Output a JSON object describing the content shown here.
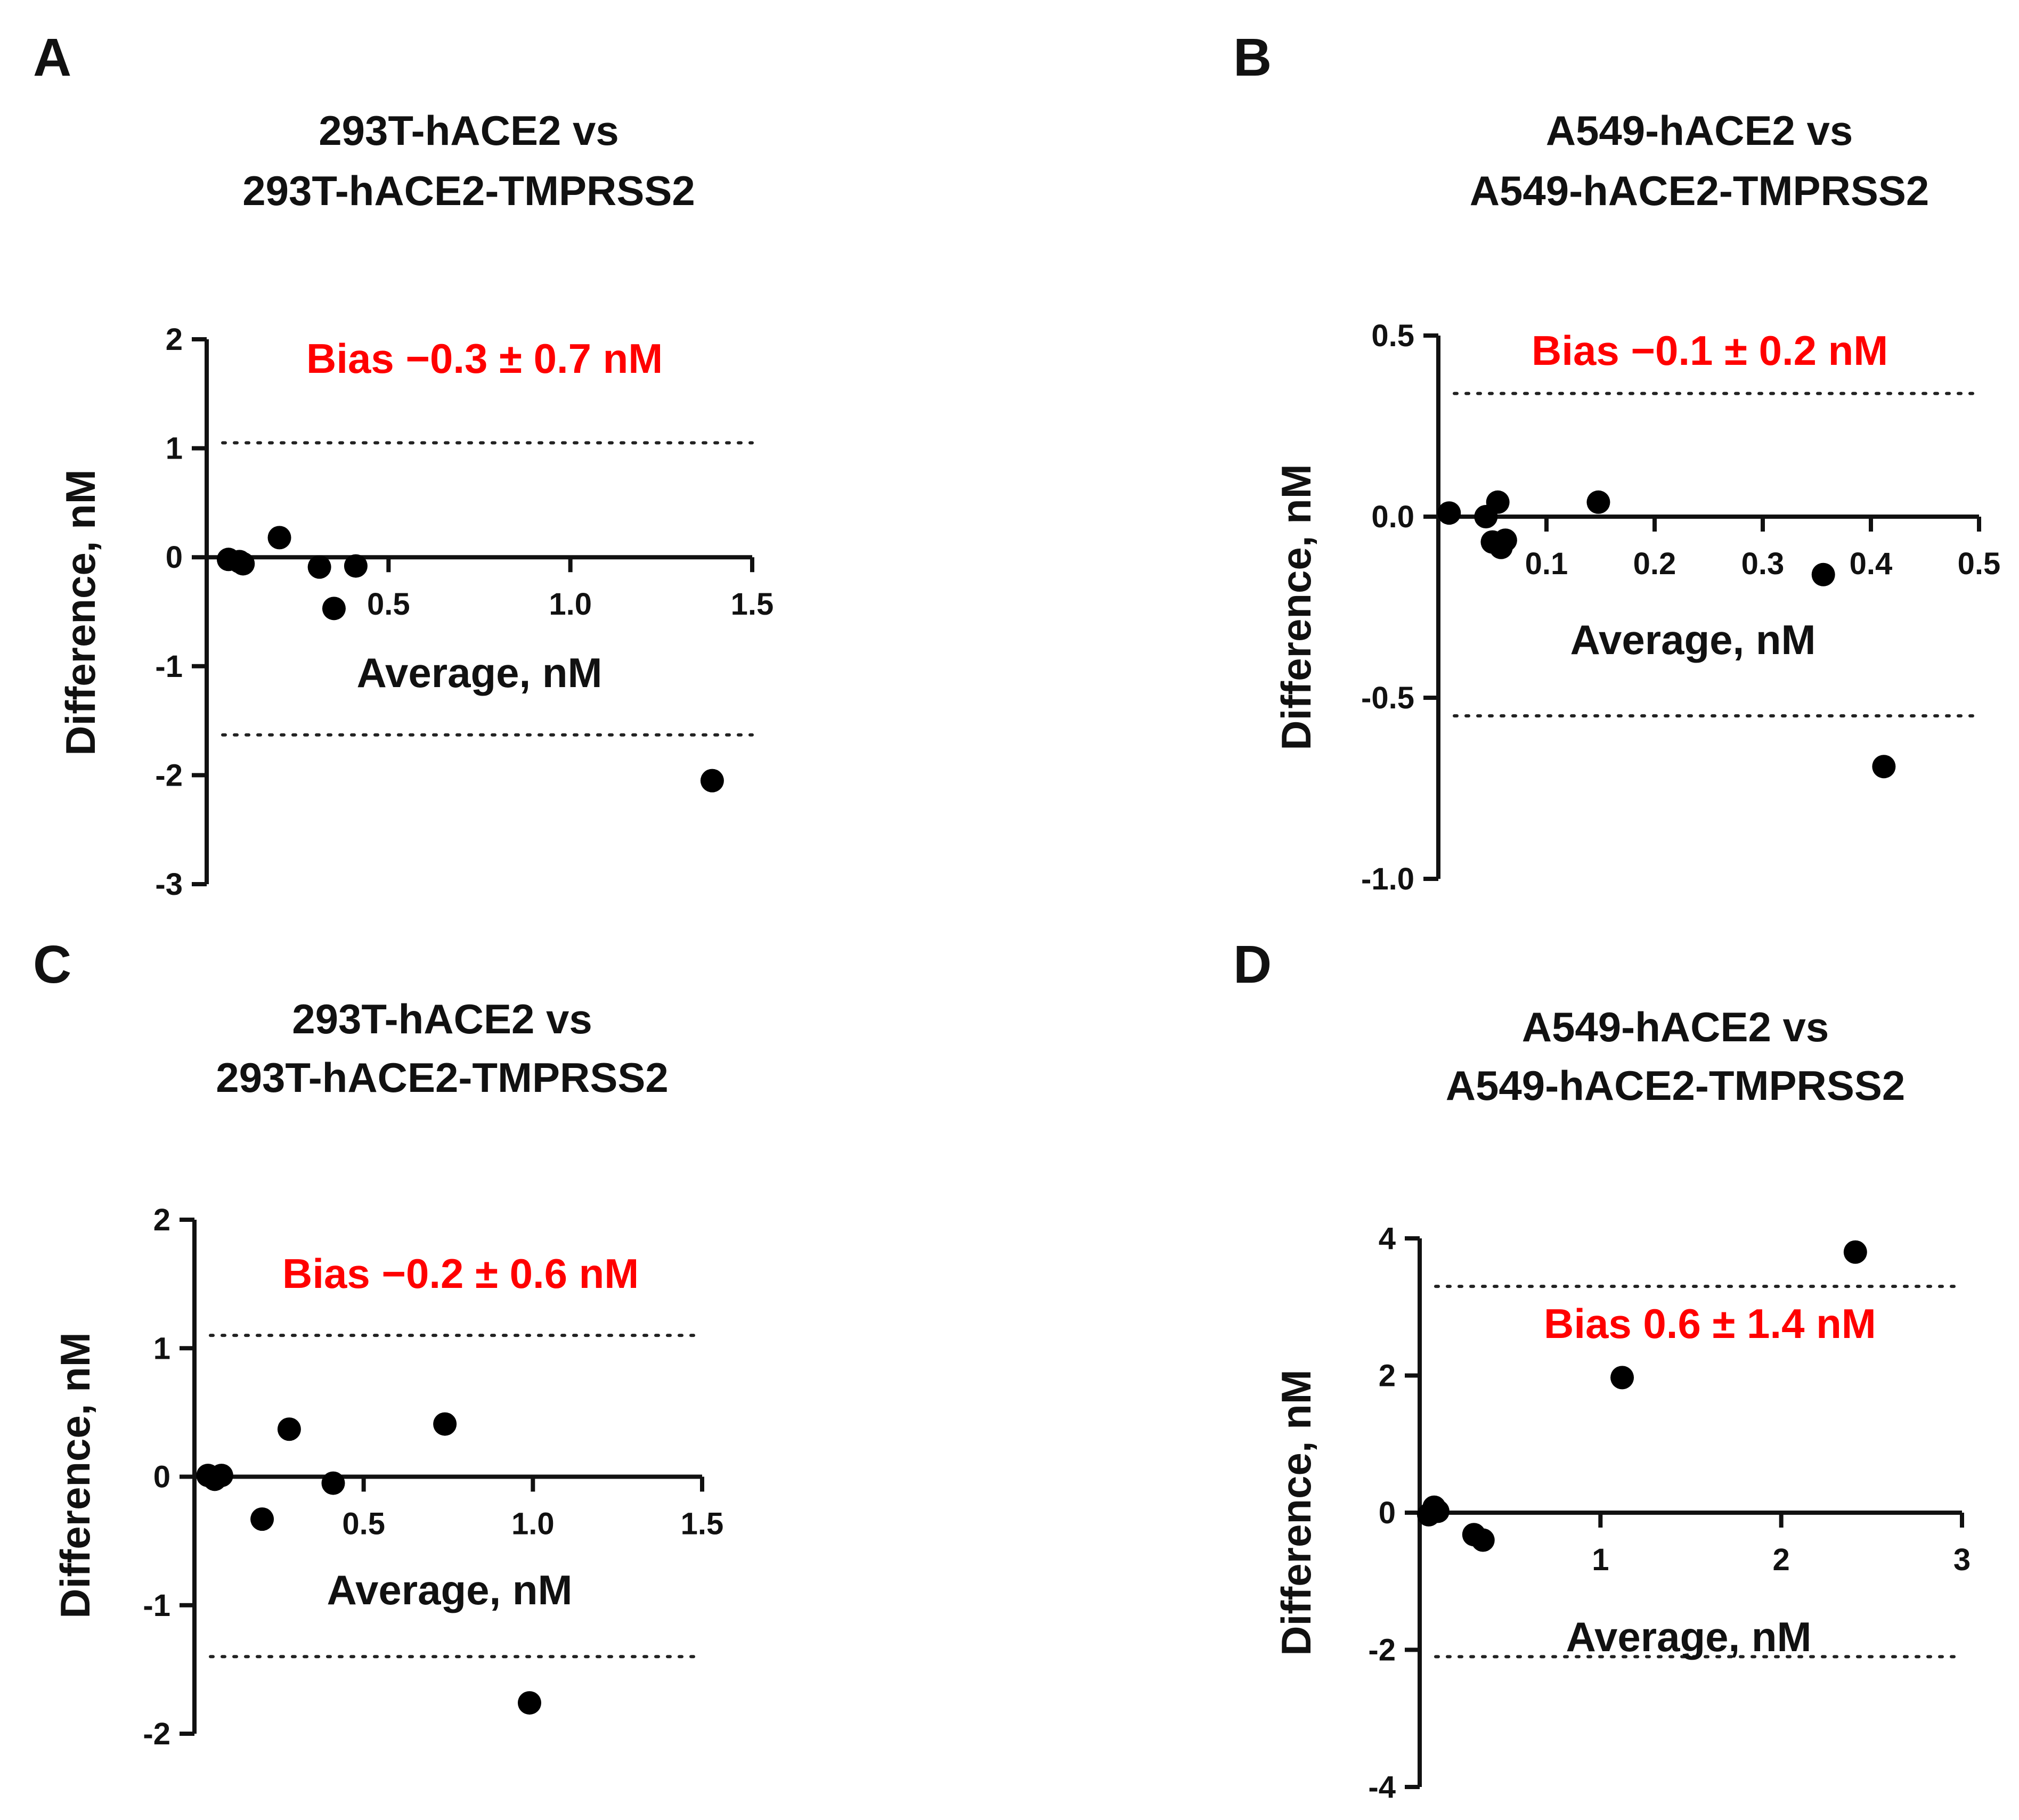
{
  "figure": {
    "panels": [
      "A",
      "B",
      "C",
      "D"
    ]
  },
  "chart_data": [
    {
      "panel": "A",
      "type": "scatter",
      "title_line1": "293T-hACE2 vs",
      "title_line2": "293T-hACE2-TMPRSS2",
      "xlabel": "Average, nM",
      "ylabel": "Difference, nM",
      "xlim": [
        0,
        1.5
      ],
      "ylim": [
        -3,
        2
      ],
      "xticks": [
        0.5,
        1.0,
        1.5
      ],
      "xtick_labels": [
        "0.5",
        "1.0",
        "1.5"
      ],
      "yticks": [
        2,
        1,
        0,
        -1,
        -2,
        -3
      ],
      "ytick_labels": [
        "2",
        "1",
        "0",
        "-1",
        "-2",
        "-3"
      ],
      "bias_text": "Bias −0.3 ± 0.7 nM",
      "bias_color": "#ff0000",
      "upper_limit": 1.05,
      "lower_limit": -1.63,
      "points": [
        {
          "x": 0.06,
          "y": -0.02
        },
        {
          "x": 0.09,
          "y": -0.04
        },
        {
          "x": 0.1,
          "y": -0.06
        },
        {
          "x": 0.2,
          "y": 0.18
        },
        {
          "x": 0.31,
          "y": -0.09
        },
        {
          "x": 0.35,
          "y": -0.47
        },
        {
          "x": 0.41,
          "y": -0.08
        },
        {
          "x": 1.39,
          "y": -2.05
        }
      ]
    },
    {
      "panel": "B",
      "type": "scatter",
      "title_line1": "A549-hACE2 vs",
      "title_line2": "A549-hACE2-TMPRSS2",
      "xlabel": "Average, nM",
      "ylabel": "Difference, nM",
      "xlim": [
        0,
        0.5
      ],
      "ylim": [
        -1.0,
        0.5
      ],
      "xticks": [
        0.1,
        0.2,
        0.3,
        0.4,
        0.5
      ],
      "xtick_labels": [
        "0.1",
        "0.2",
        "0.3",
        "0.4",
        "0.5"
      ],
      "yticks": [
        0.5,
        0.0,
        -0.5,
        -1.0
      ],
      "ytick_labels": [
        "0.5",
        "0.0",
        "-0.5",
        "-1.0"
      ],
      "bias_text": "Bias −0.1 ± 0.2 nM",
      "bias_color": "#ff0000",
      "upper_limit": 0.34,
      "lower_limit": -0.55,
      "points": [
        {
          "x": 0.01,
          "y": 0.01
        },
        {
          "x": 0.044,
          "y": 0.0
        },
        {
          "x": 0.05,
          "y": -0.07
        },
        {
          "x": 0.055,
          "y": 0.04
        },
        {
          "x": 0.058,
          "y": -0.085
        },
        {
          "x": 0.062,
          "y": -0.065
        },
        {
          "x": 0.148,
          "y": 0.04
        },
        {
          "x": 0.356,
          "y": -0.16
        },
        {
          "x": 0.412,
          "y": -0.69
        }
      ]
    },
    {
      "panel": "C",
      "type": "scatter",
      "title_line1": "293T-hACE2 vs",
      "title_line2": "293T-hACE2-TMPRSS2",
      "xlabel": "Average, nM",
      "ylabel": "Difference, nM",
      "xlim": [
        0,
        1.5
      ],
      "ylim": [
        -2,
        2
      ],
      "xticks": [
        0.5,
        1.0,
        1.5
      ],
      "xtick_labels": [
        "0.5",
        "1.0",
        "1.5"
      ],
      "yticks": [
        2,
        1,
        0,
        -1,
        -2
      ],
      "ytick_labels": [
        "2",
        "1",
        "0",
        "-1",
        "-2"
      ],
      "bias_text": "Bias −0.2 ± 0.6 nM",
      "bias_color": "#ff0000",
      "upper_limit": 1.1,
      "lower_limit": -1.4,
      "points": [
        {
          "x": 0.04,
          "y": 0.01
        },
        {
          "x": 0.06,
          "y": -0.02
        },
        {
          "x": 0.08,
          "y": 0.01
        },
        {
          "x": 0.2,
          "y": -0.33
        },
        {
          "x": 0.28,
          "y": 0.37
        },
        {
          "x": 0.41,
          "y": -0.05
        },
        {
          "x": 0.74,
          "y": 0.41
        },
        {
          "x": 0.99,
          "y": -1.76
        }
      ]
    },
    {
      "panel": "D",
      "type": "scatter",
      "title_line1": "A549-hACE2 vs",
      "title_line2": "A549-hACE2-TMPRSS2",
      "xlabel": "Average, nM",
      "ylabel": "Difference, nM",
      "xlim": [
        0,
        3
      ],
      "ylim": [
        -4,
        4
      ],
      "xticks": [
        1,
        2,
        3
      ],
      "xtick_labels": [
        "1",
        "2",
        "3"
      ],
      "yticks": [
        4,
        2,
        0,
        -2,
        -4
      ],
      "ytick_labels": [
        "4",
        "2",
        "0",
        "-2",
        "-4"
      ],
      "bias_text": "Bias 0.6 ± 1.4 nM",
      "bias_color": "#ff0000",
      "upper_limit": 3.3,
      "lower_limit": -2.1,
      "points": [
        {
          "x": 0.05,
          "y": -0.03
        },
        {
          "x": 0.08,
          "y": 0.08
        },
        {
          "x": 0.1,
          "y": 0.02
        },
        {
          "x": 0.3,
          "y": -0.32
        },
        {
          "x": 0.35,
          "y": -0.4
        },
        {
          "x": 1.12,
          "y": 1.97
        },
        {
          "x": 2.41,
          "y": 3.8
        }
      ]
    }
  ]
}
